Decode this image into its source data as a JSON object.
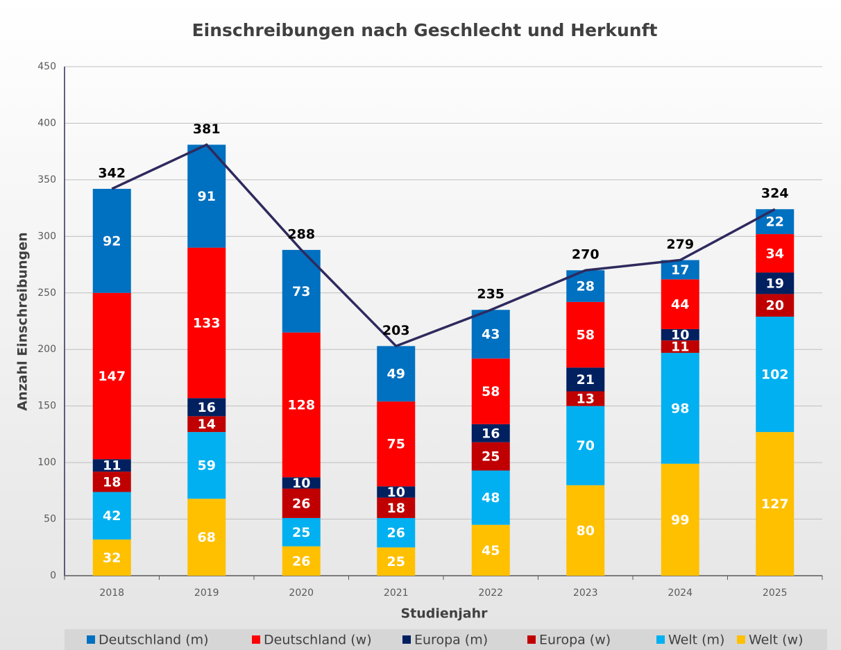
{
  "chart_data": {
    "type": "stacked_bar_line",
    "title": "Einschreibungen nach Geschlecht und Herkunft",
    "x_label": "Studienjahr",
    "y_label": "Anzahl Einschreibungen",
    "categories": [
      "2018",
      "2019",
      "2020",
      "2021",
      "2022",
      "2023",
      "2024",
      "2025"
    ],
    "series": [
      {
        "name": "Deutschland (m)",
        "color": "#0070c0",
        "values": [
          92,
          91,
          73,
          49,
          43,
          28,
          17,
          22
        ]
      },
      {
        "name": "Deutschland (w)",
        "color": "#ff0000",
        "values": [
          147,
          133,
          128,
          75,
          58,
          58,
          44,
          34
        ]
      },
      {
        "name": "Europa (m)",
        "color": "#002060",
        "values": [
          11,
          16,
          10,
          10,
          16,
          21,
          10,
          19
        ]
      },
      {
        "name": "Europa (w)",
        "color": "#c00000",
        "values": [
          18,
          14,
          26,
          18,
          25,
          13,
          11,
          20
        ]
      },
      {
        "name": "Welt (m)",
        "color": "#00b0f0",
        "values": [
          42,
          59,
          25,
          26,
          48,
          70,
          98,
          102
        ]
      },
      {
        "name": "Welt (w)",
        "color": "#ffc000",
        "values": [
          32,
          68,
          26,
          25,
          45,
          80,
          99,
          127
        ]
      }
    ],
    "totals": [
      342,
      381,
      288,
      203,
      235,
      270,
      279,
      324
    ],
    "totals_color": "#2e2a5e",
    "ylim": [
      0,
      450
    ],
    "yticks": [
      0,
      50,
      100,
      150,
      200,
      250,
      300,
      350,
      400,
      450
    ],
    "grid": true,
    "legend": "bottom"
  }
}
